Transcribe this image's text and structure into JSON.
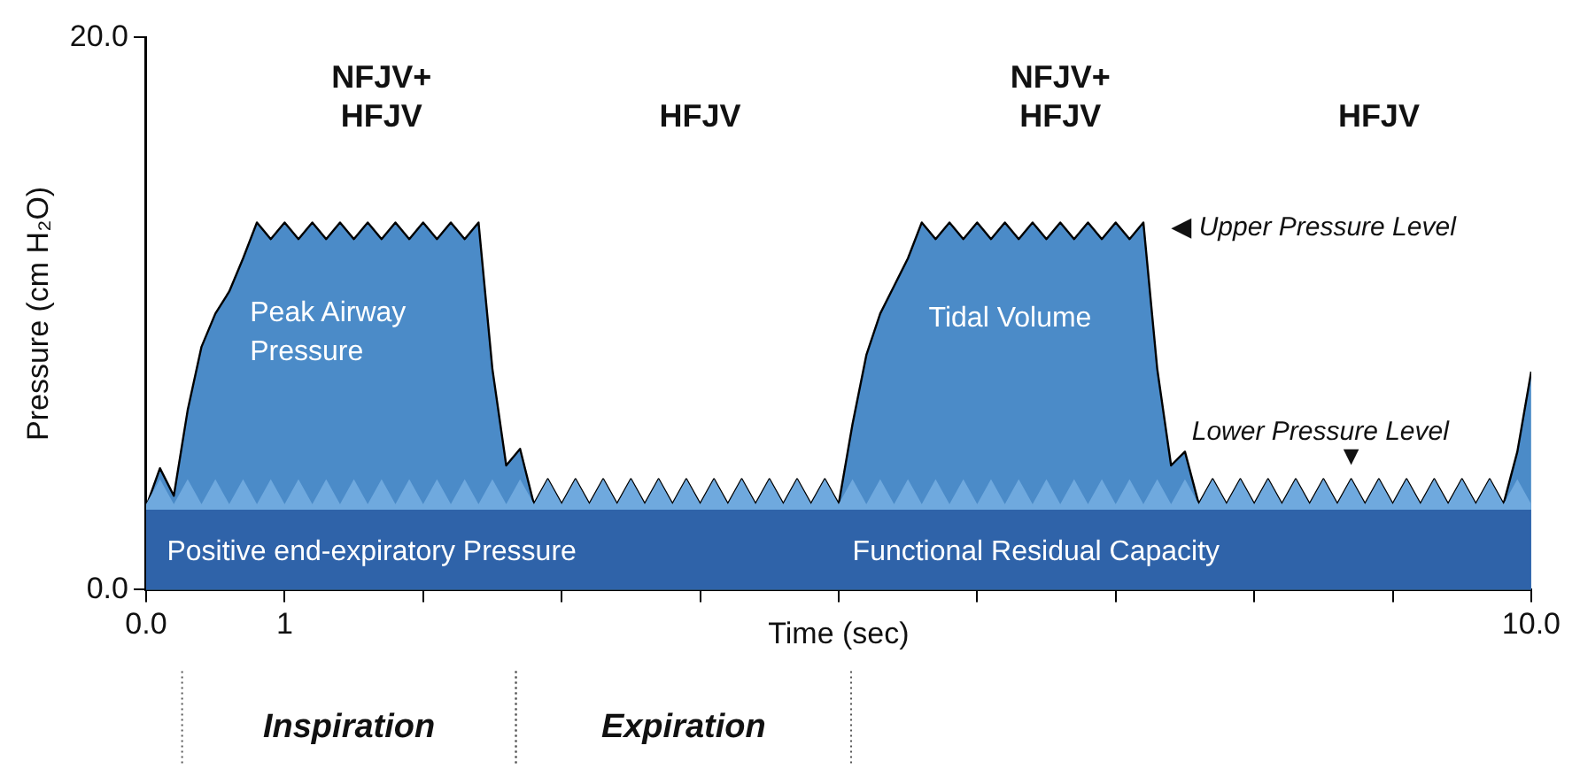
{
  "chart_data": {
    "type": "area",
    "xlabel": "Time (sec)",
    "ylabel": "Pressure (cm H₂O)",
    "x": [
      0,
      0.1,
      0.2,
      0.3,
      0.4,
      0.5,
      0.6,
      0.7,
      0.8,
      0.9,
      1,
      1.1,
      1.2,
      1.3,
      1.4,
      1.5,
      1.6,
      1.7,
      1.8,
      1.9,
      2,
      2.1,
      2.2,
      2.3,
      2.4,
      2.5,
      2.6,
      2.7,
      2.8,
      2.9,
      3,
      3.1,
      3.2,
      3.3,
      3.4,
      3.5,
      3.6,
      3.7,
      3.8,
      3.9,
      4,
      4.1,
      4.2,
      4.3,
      4.4,
      4.5,
      4.6,
      4.7,
      4.8,
      4.9,
      5,
      5.1,
      5.2,
      5.3,
      5.4,
      5.5,
      5.6,
      5.7,
      5.8,
      5.9,
      6,
      6.1,
      6.2,
      6.3,
      6.4,
      6.5,
      6.6,
      6.7,
      6.8,
      6.9,
      7,
      7.1,
      7.2,
      7.3,
      7.4,
      7.5,
      7.6,
      7.7,
      7.8,
      7.9,
      8,
      8.1,
      8.2,
      8.3,
      8.4,
      8.5,
      8.6,
      8.7,
      8.8,
      8.9,
      9,
      9.1,
      9.2,
      9.3,
      9.4,
      9.5,
      9.6,
      9.7,
      9.8,
      9.9,
      10
    ],
    "series": [
      {
        "color": "#4b8bc8",
        "values": [
          3.0,
          4.4,
          3.4,
          6.5,
          8.8,
          10.0,
          10.8,
          12.0,
          13.3,
          12.7,
          13.3,
          12.7,
          13.3,
          12.7,
          13.3,
          12.7,
          13.3,
          12.7,
          13.3,
          12.7,
          13.3,
          12.7,
          13.3,
          12.7,
          13.3,
          8.0,
          4.5,
          5.1,
          3.1,
          4.0,
          3.1,
          4.0,
          3.1,
          4.0,
          3.1,
          4.0,
          3.1,
          4.0,
          3.1,
          4.0,
          3.1,
          4.0,
          3.1,
          4.0,
          3.1,
          4.0,
          3.1,
          4.0,
          3.1,
          4.0,
          3.1,
          6.0,
          8.5,
          10.0,
          11.0,
          12.0,
          13.3,
          12.7,
          13.3,
          12.7,
          13.3,
          12.7,
          13.3,
          12.7,
          13.3,
          12.7,
          13.3,
          12.7,
          13.3,
          12.7,
          13.3,
          12.7,
          13.3,
          8.0,
          4.5,
          5.0,
          3.1,
          4.0,
          3.1,
          4.0,
          3.1,
          4.0,
          3.1,
          4.0,
          3.1,
          4.0,
          3.1,
          4.0,
          3.1,
          4.0,
          3.1,
          4.0,
          3.1,
          4.0,
          3.1,
          4.0,
          3.1,
          4.0,
          3.1,
          5.0,
          7.9
        ]
      },
      {
        "color": "#6fa9de",
        "values": [
          3.1,
          4.0,
          3.1,
          4.0,
          3.1,
          4.0,
          3.1,
          4.0,
          3.1,
          4.0,
          3.1,
          4.0,
          3.1,
          4.0,
          3.1,
          4.0,
          3.1,
          4.0,
          3.1,
          4.0,
          3.1,
          4.0,
          3.1,
          4.0,
          3.1,
          4.0,
          3.1,
          4.0,
          3.1,
          4.0,
          3.1,
          4.0,
          3.1,
          4.0,
          3.1,
          4.0,
          3.1,
          4.0,
          3.1,
          4.0,
          3.1,
          4.0,
          3.1,
          4.0,
          3.1,
          4.0,
          3.1,
          4.0,
          3.1,
          4.0,
          3.1,
          4.0,
          3.1,
          4.0,
          3.1,
          4.0,
          3.1,
          4.0,
          3.1,
          4.0,
          3.1,
          4.0,
          3.1,
          4.0,
          3.1,
          4.0,
          3.1,
          4.0,
          3.1,
          4.0,
          3.1,
          4.0,
          3.1,
          4.0,
          3.1,
          4.0,
          3.1,
          4.0,
          3.1,
          4.0,
          3.1,
          4.0,
          3.1,
          4.0,
          3.1,
          4.0,
          3.1,
          4.0,
          3.1,
          4.0,
          3.1,
          4.0,
          3.1,
          4.0,
          3.1,
          4.0,
          3.1,
          4.0,
          3.1,
          4.0,
          3.1
        ]
      },
      {
        "color": "#2f63a9",
        "x": [
          0,
          10
        ],
        "values": [
          2.9,
          2.9
        ]
      }
    ],
    "xlim": [
      0,
      10
    ],
    "ylim": [
      0,
      20
    ],
    "xticks": [
      {
        "value": 0,
        "label": "0.0"
      },
      {
        "value": 1,
        "label": "1"
      },
      {
        "value": 2,
        "label": null
      },
      {
        "value": 3,
        "label": null
      },
      {
        "value": 4,
        "label": null
      },
      {
        "value": 5,
        "label": null
      },
      {
        "value": 6,
        "label": null
      },
      {
        "value": 7,
        "label": null
      },
      {
        "value": 8,
        "label": null
      },
      {
        "value": 9,
        "label": null
      },
      {
        "value": 10,
        "label": "10.0"
      }
    ],
    "yticks": [
      {
        "value": 0,
        "label": "0.0"
      },
      {
        "value": 20,
        "label": "20.0"
      }
    ],
    "annotations": [
      "NFJV+\nHFJV",
      "HFJV",
      "NFJV+\nHFJV",
      "HFJV",
      "◀ Upper Pressure Level",
      "Lower Pressure Level",
      "▼",
      "Peak Airway\nPressure",
      "Tidal Volume",
      "Positive end-expiratory Pressure",
      "Functional Residual Capacity",
      "Inspiration",
      "Expiration"
    ],
    "grid": false,
    "legend": false
  }
}
